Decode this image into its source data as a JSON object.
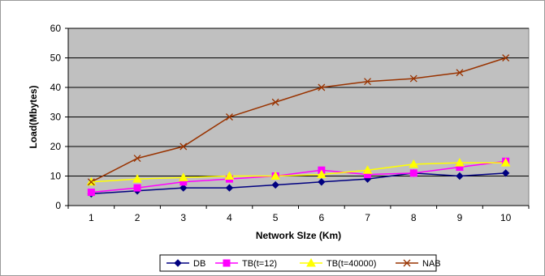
{
  "chart_data": {
    "type": "line",
    "title": "",
    "xlabel": "Network SIze  (Km)",
    "ylabel": "Load(Mbytes)",
    "x": [
      1,
      2,
      3,
      4,
      5,
      6,
      7,
      8,
      9,
      10
    ],
    "ylim": [
      0,
      60
    ],
    "yticks": [
      0,
      10,
      20,
      30,
      40,
      50,
      60
    ],
    "grid": true,
    "plot_background": "#c0c0c0",
    "legend_position": "bottom",
    "series": [
      {
        "name": "DB",
        "color": "#000080",
        "marker": "diamond",
        "values": [
          4,
          5,
          6,
          6,
          7,
          8,
          9,
          11,
          10,
          11
        ]
      },
      {
        "name": "TB(t=12)",
        "color": "#ff00ff",
        "marker": "square",
        "values": [
          4.5,
          6,
          8,
          9,
          10,
          12,
          10.5,
          11,
          13,
          15
        ]
      },
      {
        "name": "TB(t=40000)",
        "color": "#ffff00",
        "marker": "triangle",
        "values": [
          8,
          9,
          9.5,
          10,
          10,
          10.5,
          12,
          14,
          14.5,
          14.5
        ]
      },
      {
        "name": "NAB",
        "color": "#993300",
        "marker": "x",
        "values": [
          8,
          16,
          20,
          30,
          35,
          40,
          42,
          43,
          45,
          50
        ]
      }
    ]
  }
}
